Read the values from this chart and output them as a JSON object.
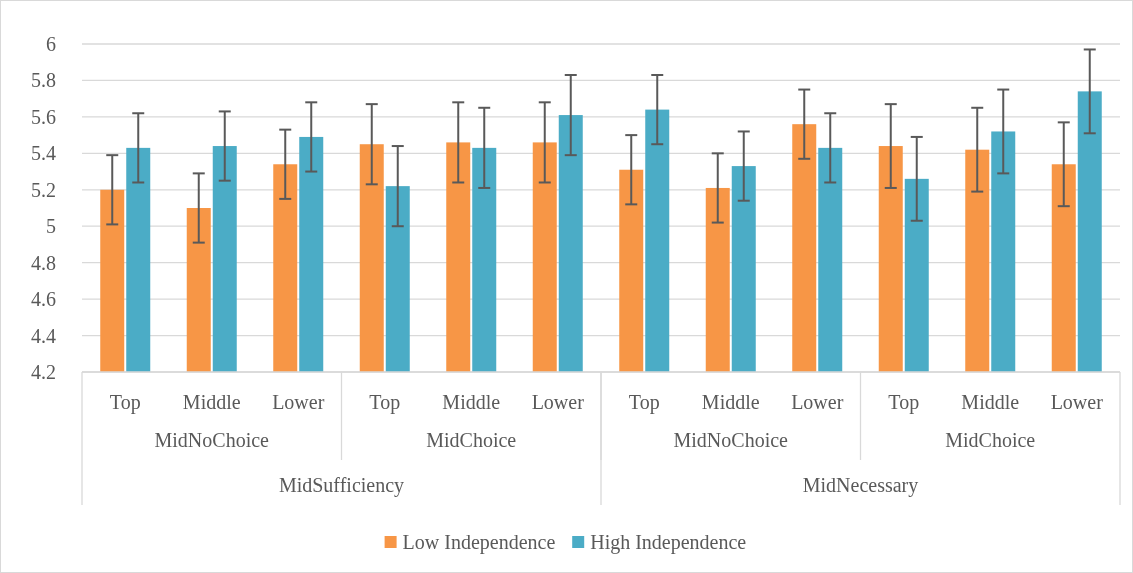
{
  "chart_data": {
    "type": "bar",
    "categories": [
      "Top",
      "Middle",
      "Lower",
      "Top",
      "Middle",
      "Lower",
      "Top",
      "Middle",
      "Lower",
      "Top",
      "Middle",
      "Lower"
    ],
    "series": [
      {
        "name": "Low Independence",
        "color": "#f79646",
        "values": [
          5.2,
          5.1,
          5.34,
          5.45,
          5.46,
          5.46,
          5.31,
          5.21,
          5.56,
          5.44,
          5.42,
          5.34
        ],
        "errors": [
          [
            5.01,
            5.39
          ],
          [
            4.91,
            5.29
          ],
          [
            5.15,
            5.53
          ],
          [
            5.23,
            5.67
          ],
          [
            5.24,
            5.68
          ],
          [
            5.24,
            5.68
          ],
          [
            5.12,
            5.5
          ],
          [
            5.02,
            5.4
          ],
          [
            5.37,
            5.75
          ],
          [
            5.21,
            5.67
          ],
          [
            5.19,
            5.65
          ],
          [
            5.11,
            5.57
          ]
        ]
      },
      {
        "name": "High Independence",
        "color": "#4bacc6",
        "values": [
          5.43,
          5.44,
          5.49,
          5.22,
          5.43,
          5.61,
          5.64,
          5.33,
          5.43,
          5.26,
          5.52,
          5.74
        ],
        "errors": [
          [
            5.24,
            5.62
          ],
          [
            5.25,
            5.63
          ],
          [
            5.3,
            5.68
          ],
          [
            5.0,
            5.44
          ],
          [
            5.21,
            5.65
          ],
          [
            5.39,
            5.83
          ],
          [
            5.45,
            5.83
          ],
          [
            5.14,
            5.52
          ],
          [
            5.24,
            5.62
          ],
          [
            5.03,
            5.49
          ],
          [
            5.29,
            5.75
          ],
          [
            5.51,
            5.97
          ]
        ]
      }
    ],
    "annotations": [
      "MidNoChoice",
      "MidChoice",
      "MidNoChoice",
      "MidChoice",
      "MidSufficiency",
      "MidNecessary"
    ],
    "ylim": [
      4.2,
      6
    ],
    "yticks": [
      4.2,
      4.4,
      4.6,
      4.8,
      5,
      5.2,
      5.4,
      5.6,
      5.8,
      6
    ],
    "grid": "y",
    "legend": "bottom"
  }
}
